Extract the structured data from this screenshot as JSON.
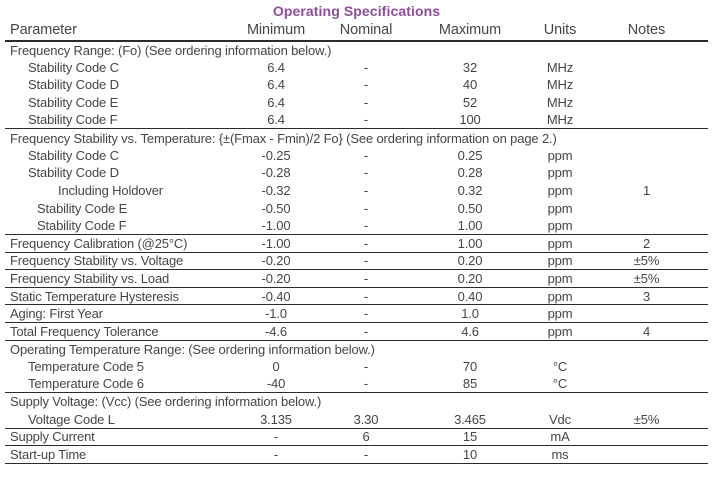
{
  "title": "Operating Specifications",
  "colors": {
    "accent": "#8e4d9a",
    "text": "#454547",
    "line": "#2b2b2d"
  },
  "table": {
    "columns": [
      "Parameter",
      "Minimum",
      "Nominal",
      "Maximum",
      "Units",
      "Notes"
    ],
    "rows": [
      {
        "param": "Frequency Range: (Fo) (See ordering information below.)",
        "section": true,
        "indent": 0,
        "min": "",
        "nom": "",
        "max": "",
        "units": "",
        "notes": "",
        "rule": false
      },
      {
        "param": "Stability Code C",
        "section": false,
        "indent": 1,
        "min": "6.4",
        "nom": "-",
        "max": "32",
        "units": "MHz",
        "notes": "",
        "rule": false
      },
      {
        "param": "Stability Code D",
        "section": false,
        "indent": 1,
        "min": "6.4",
        "nom": "-",
        "max": "40",
        "units": "MHz",
        "notes": "",
        "rule": false
      },
      {
        "param": "Stability Code E",
        "section": false,
        "indent": 1,
        "min": "6.4",
        "nom": "-",
        "max": "52",
        "units": "MHz",
        "notes": "",
        "rule": false
      },
      {
        "param": "Stability Code F",
        "section": false,
        "indent": 1,
        "min": "6.4",
        "nom": "-",
        "max": "100",
        "units": "MHz",
        "notes": "",
        "rule": true
      },
      {
        "param": "Frequency Stability vs. Temperature: {±(Fmax - Fmin)/2 Fo} (See ordering information on page 2.)",
        "section": true,
        "indent": 0,
        "min": "",
        "nom": "",
        "max": "",
        "units": "",
        "notes": "",
        "rule": false
      },
      {
        "param": "Stability Code C",
        "section": false,
        "indent": 1,
        "min": "-0.25",
        "nom": "-",
        "max": "0.25",
        "units": "ppm",
        "notes": "",
        "rule": false
      },
      {
        "param": "Stability Code D",
        "section": false,
        "indent": 1,
        "min": "-0.28",
        "nom": "-",
        "max": "0.28",
        "units": "ppm",
        "notes": "",
        "rule": false
      },
      {
        "param": "Including Holdover",
        "section": false,
        "indent": 2,
        "min": "-0.32",
        "nom": "-",
        "max": "0.32",
        "units": "ppm",
        "notes": "1",
        "rule": false
      },
      {
        "param": "Stability Code E",
        "section": false,
        "indent": 1.5,
        "min": "-0.50",
        "nom": "-",
        "max": "0.50",
        "units": "ppm",
        "notes": "",
        "rule": false
      },
      {
        "param": "Stability Code F",
        "section": false,
        "indent": 1.5,
        "min": "-1.00",
        "nom": "-",
        "max": "1.00",
        "units": "ppm",
        "notes": "",
        "rule": true
      },
      {
        "param": "Frequency Calibration (@25°C)",
        "section": false,
        "indent": 0,
        "min": "-1.00",
        "nom": "-",
        "max": "1.00",
        "units": "ppm",
        "notes": "2",
        "rule": true
      },
      {
        "param": "Frequency Stability vs. Voltage",
        "section": false,
        "indent": 0,
        "min": "-0.20",
        "nom": "-",
        "max": "0.20",
        "units": "ppm",
        "notes": "±5%",
        "rule": true
      },
      {
        "param": "Frequency Stability vs. Load",
        "section": false,
        "indent": 0,
        "min": "-0.20",
        "nom": "-",
        "max": "0.20",
        "units": "ppm",
        "notes": "±5%",
        "rule": true
      },
      {
        "param": "Static Temperature Hysteresis",
        "section": false,
        "indent": 0,
        "min": "-0.40",
        "nom": "-",
        "max": "0.40",
        "units": "ppm",
        "notes": "3",
        "rule": true
      },
      {
        "param": "Aging: First Year",
        "section": false,
        "indent": 0,
        "min": "-1.0",
        "nom": "-",
        "max": "1.0",
        "units": "ppm",
        "notes": "",
        "rule": true
      },
      {
        "param": "Total Frequency Tolerance",
        "section": false,
        "indent": 0,
        "min": "-4.6",
        "nom": "-",
        "max": "4.6",
        "units": "ppm",
        "notes": "4",
        "rule": true
      },
      {
        "param": "Operating Temperature Range: (See ordering information below.)",
        "section": true,
        "indent": 0,
        "min": "",
        "nom": "",
        "max": "",
        "units": "",
        "notes": "",
        "rule": false
      },
      {
        "param": "Temperature Code 5",
        "section": false,
        "indent": 1,
        "min": "0",
        "nom": "-",
        "max": "70",
        "units": "°C",
        "notes": "",
        "rule": false
      },
      {
        "param": "Temperature Code 6",
        "section": false,
        "indent": 1,
        "min": "-40",
        "nom": "-",
        "max": "85",
        "units": "°C",
        "notes": "",
        "rule": true
      },
      {
        "param": "Supply Voltage: (Vcc) (See ordering information below.)",
        "section": true,
        "indent": 0,
        "min": "",
        "nom": "",
        "max": "",
        "units": "",
        "notes": "",
        "rule": false
      },
      {
        "param": "Voltage Code L",
        "section": false,
        "indent": 1,
        "min": "3.135",
        "nom": "3.30",
        "max": "3.465",
        "units": "Vdc",
        "notes": "±5%",
        "rule": true
      },
      {
        "param": "Supply Current",
        "section": false,
        "indent": 0,
        "min": "-",
        "nom": "6",
        "max": "15",
        "units": "mA",
        "notes": "",
        "rule": true
      },
      {
        "param": "Start-up Time",
        "section": false,
        "indent": 0,
        "min": "-",
        "nom": "-",
        "max": "10",
        "units": "ms",
        "notes": "",
        "rule": true
      }
    ]
  }
}
